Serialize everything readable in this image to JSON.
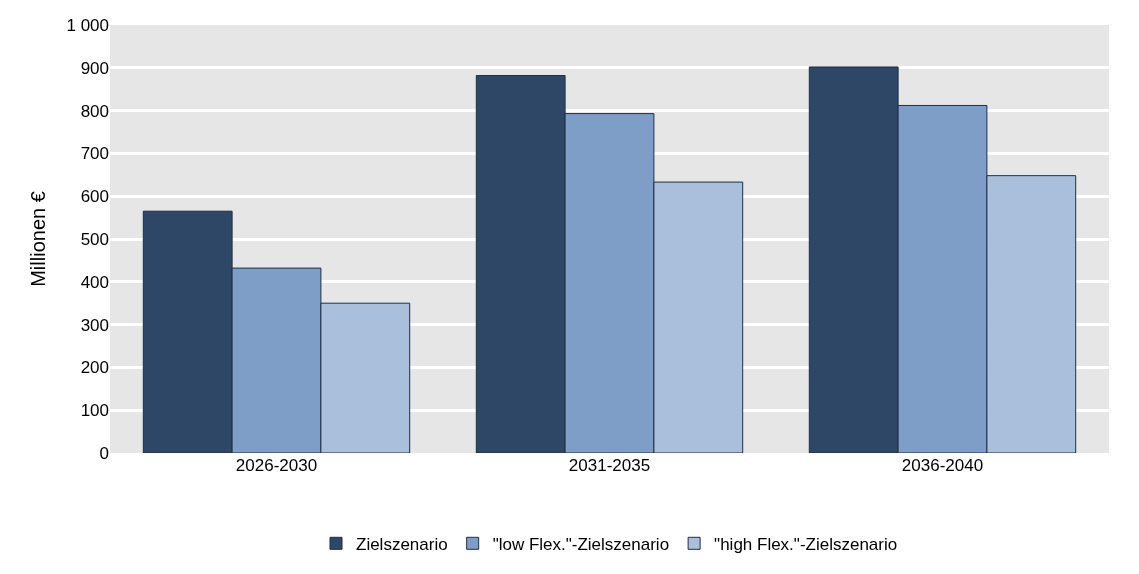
{
  "chart_data": {
    "type": "bar",
    "ylabel": "Millionen €",
    "categories": [
      "2026-2030",
      "2031-2035",
      "2036-2040"
    ],
    "series": [
      {
        "name": "Zielszenario",
        "color": "#2e4766",
        "values": [
          565,
          882,
          902
        ]
      },
      {
        "name": "\"low Flex.\"-Zielszenario",
        "color": "#7f9ec7",
        "values": [
          432,
          793,
          812
        ]
      },
      {
        "name": "\"high Flex.\"-Zielszenario",
        "color": "#a9bfdc",
        "values": [
          350,
          633,
          648
        ]
      }
    ],
    "ylim": [
      0,
      1000
    ],
    "yticks": [
      0,
      100,
      200,
      300,
      400,
      500,
      600,
      700,
      800,
      900,
      {
        "value": 1000,
        "label": "1 000"
      }
    ],
    "grid": "y",
    "legend": "bottom"
  }
}
